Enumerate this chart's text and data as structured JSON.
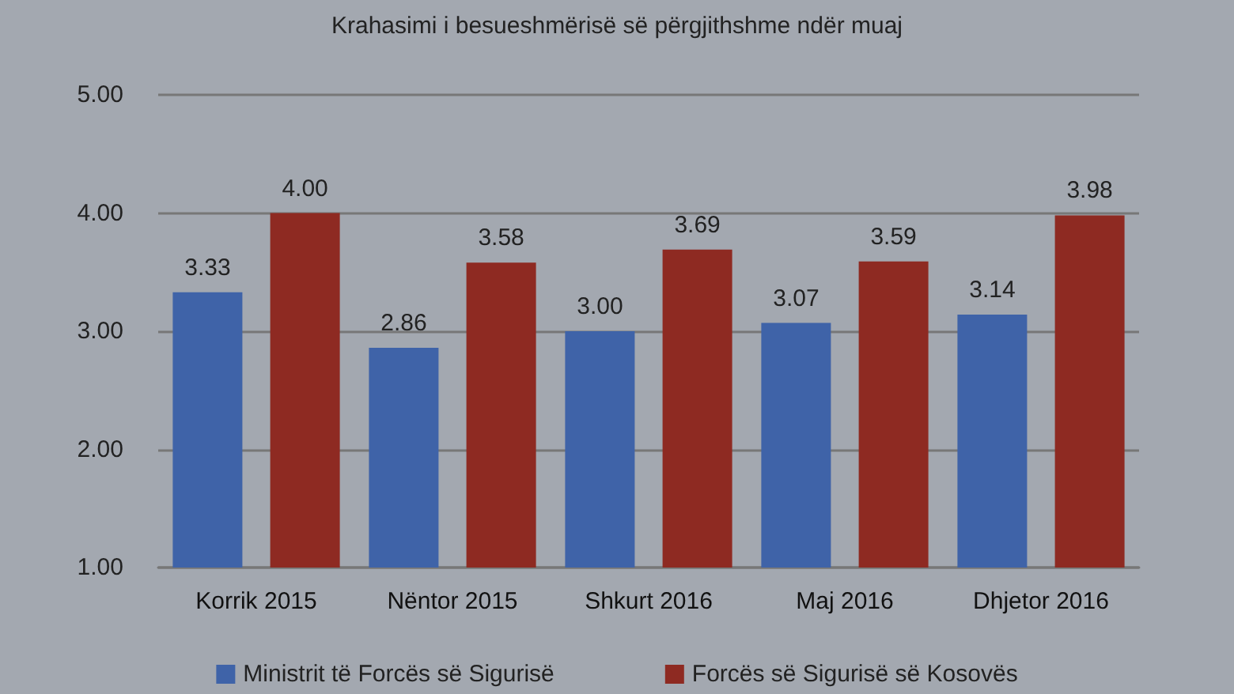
{
  "chart_data": {
    "type": "bar",
    "title": "Krahasimi i besueshmërisë së përgjithshme ndër muaj",
    "categories": [
      "Korrik 2015",
      "Nëntor 2015",
      "Shkurt 2016",
      "Maj 2016",
      "Dhjetor 2016"
    ],
    "series": [
      {
        "name": "Ministrit të Forcës së Sigurisë",
        "color": "#3f63a8",
        "values": [
          3.33,
          2.86,
          3.0,
          3.07,
          3.14
        ],
        "value_labels": [
          "3.33",
          "2.86",
          "3.00",
          "3.07",
          "3.14"
        ]
      },
      {
        "name": "Forcës së Sigurisë së Kosovës",
        "color": "#8e2a22",
        "values": [
          4.0,
          3.58,
          3.69,
          3.59,
          3.98
        ],
        "value_labels": [
          "4.00",
          "3.58",
          "3.69",
          "3.59",
          "3.98"
        ]
      }
    ],
    "ylim": [
      1,
      5
    ],
    "yticks": [
      {
        "value": 1,
        "label": "1.00"
      },
      {
        "value": 2,
        "label": "2.00"
      },
      {
        "value": 3,
        "label": "3.00"
      },
      {
        "value": 4,
        "label": "4.00"
      },
      {
        "value": 5,
        "label": "5.00"
      }
    ],
    "grid": "y",
    "legend": "bottom"
  }
}
